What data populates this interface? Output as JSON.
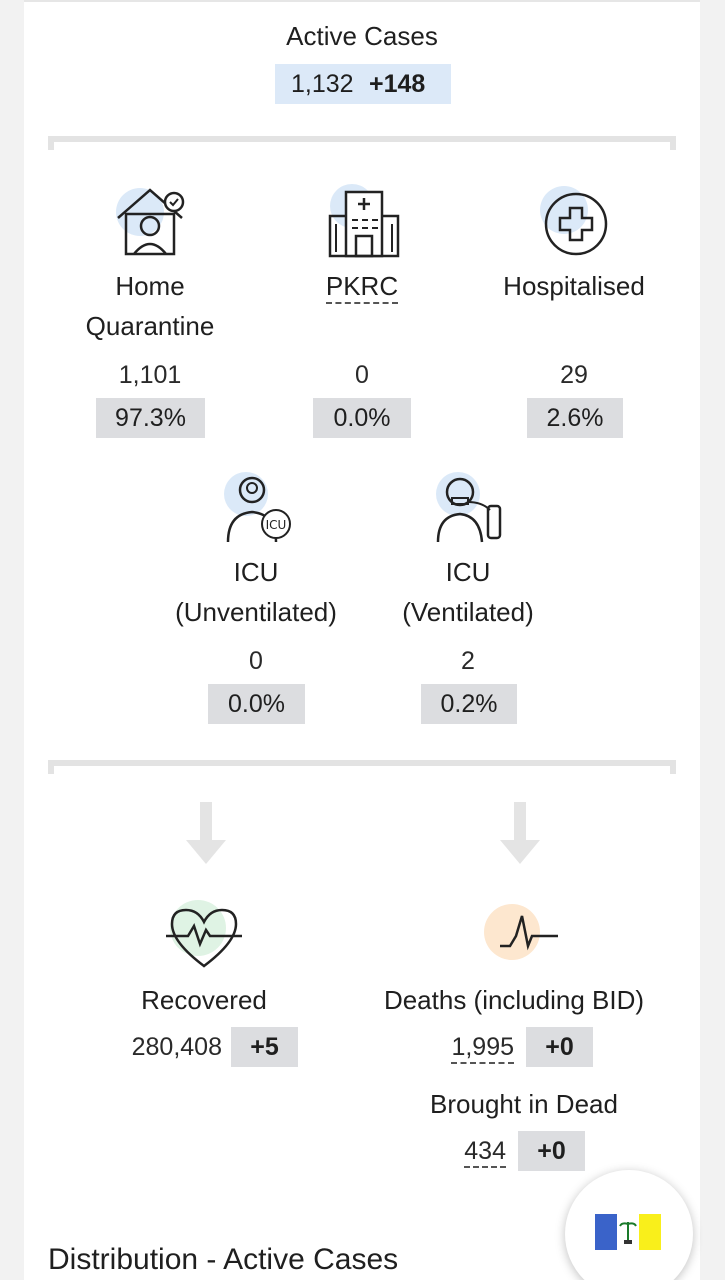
{
  "active_cases": {
    "title": "Active Cases",
    "value": "1,132",
    "delta": "+148"
  },
  "categories": [
    {
      "label_line1": "Home",
      "label_line2": "Quarantine",
      "value": "1,101",
      "percent": "97.3%",
      "icon": "home-quarantine-icon"
    },
    {
      "label_line1": "PKRC",
      "value": "0",
      "percent": "0.0%",
      "icon": "pkrc-building-icon"
    },
    {
      "label_line1": "Hospitalised",
      "value": "29",
      "percent": "2.6%",
      "icon": "hospital-cross-icon"
    },
    {
      "label_line1": "ICU",
      "label_line2": "(Unventilated)",
      "value": "0",
      "percent": "0.0%",
      "icon": "icu-doctor-icon"
    },
    {
      "label_line1": "ICU",
      "label_line2": "(Ventilated)",
      "value": "2",
      "percent": "0.2%",
      "icon": "ventilator-patient-icon"
    }
  ],
  "recovered": {
    "label": "Recovered",
    "value": "280,408",
    "delta": "+5",
    "icon": "heart-pulse-icon"
  },
  "deaths": {
    "label": "Deaths (including BID)",
    "value": "1,995",
    "delta": "+0",
    "icon": "pulse-line-icon"
  },
  "bid": {
    "label": "Brought in Dead",
    "value": "434",
    "delta": "+0"
  },
  "section_title": "Distribution - Active Cases",
  "colors": {
    "blue_circle": "#dbe9f8",
    "green_circle": "#dff3e4",
    "orange_circle": "#fde7cf",
    "pill_bg": "#dcdde0",
    "active_bg": "#dce9f8"
  }
}
